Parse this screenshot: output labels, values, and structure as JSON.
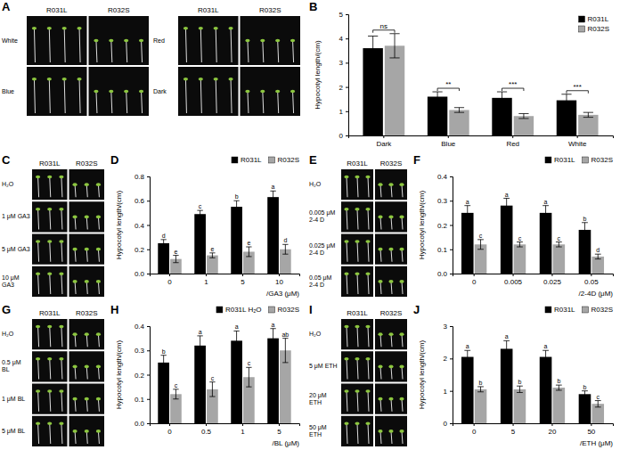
{
  "photo_panels": [
    {
      "panel_label": "A",
      "blocks": [
        {
          "columns": [
            "R031L",
            "R032S"
          ],
          "rows": [
            "White",
            "Blue"
          ]
        },
        {
          "columns": [
            "R031L",
            "R032S"
          ],
          "rows": [
            "Red",
            "Dark"
          ]
        }
      ]
    },
    {
      "panel_label": "C",
      "blocks": [
        {
          "columns": [
            "R031L",
            "R032S"
          ],
          "rows": [
            "H₂O",
            "1 μM GA3",
            "5 μM GA3",
            "10 μM GA3"
          ]
        }
      ]
    },
    {
      "panel_label": "E",
      "blocks": [
        {
          "columns": [
            "R031L",
            "R032S"
          ],
          "rows": [
            "H₂O",
            "0.005 μM 2-4 D",
            "0.025 μM 2-4 D",
            "0.05 μM 2-4 D"
          ]
        }
      ]
    },
    {
      "panel_label": "G",
      "blocks": [
        {
          "columns": [
            "R031L",
            "R032S"
          ],
          "rows": [
            "H₂O",
            "0.5 μM BL",
            "1 μM BL",
            "5 μM BL"
          ]
        }
      ]
    },
    {
      "panel_label": "I",
      "blocks": [
        {
          "columns": [
            "R031L",
            "R032S"
          ],
          "rows": [
            "H₂O",
            "5 μM ETH",
            "20 μM ETH",
            "50 μM ETH"
          ]
        }
      ]
    }
  ],
  "chart_data": [
    {
      "panel_label": "B",
      "type": "bar",
      "y_label": "Hypocotyl length/(cm)",
      "categories": [
        "Dark",
        "Blue",
        "Red",
        "White"
      ],
      "series": [
        {
          "name": "R031L",
          "color": "#000000",
          "values": [
            3.6,
            1.6,
            1.55,
            1.45
          ],
          "errors": [
            0.5,
            0.2,
            0.25,
            0.25
          ]
        },
        {
          "name": "R032S",
          "color": "#a6a6a6",
          "values": [
            3.7,
            1.05,
            0.8,
            0.85
          ],
          "errors": [
            0.5,
            0.1,
            0.1,
            0.1
          ]
        }
      ],
      "significance": [
        "ns",
        "**",
        "***",
        "***"
      ],
      "ylim": [
        0,
        5
      ],
      "yticks": [
        0,
        1,
        2,
        3,
        4,
        5
      ],
      "legend": "upper right"
    },
    {
      "panel_label": "D",
      "type": "bar",
      "y_label": "Hypocotyl length/(cm)",
      "x_label": "/GA3 (μM)",
      "categories": [
        "0",
        "1",
        "5",
        "10"
      ],
      "series": [
        {
          "name": "R031L",
          "color": "#000000",
          "values": [
            0.25,
            0.49,
            0.55,
            0.63
          ],
          "errors": [
            0.03,
            0.03,
            0.05,
            0.05
          ],
          "letters": [
            "d",
            "c",
            "b",
            "a"
          ]
        },
        {
          "name": "R032S",
          "color": "#a6a6a6",
          "values": [
            0.12,
            0.15,
            0.18,
            0.2
          ],
          "errors": [
            0.03,
            0.02,
            0.04,
            0.04
          ],
          "letters": [
            "e",
            "e",
            "e",
            "d"
          ]
        }
      ],
      "ylim": [
        0,
        0.8
      ],
      "yticks": [
        {
          "value": 0,
          "label": "0.0"
        },
        0.2,
        0.4,
        0.6,
        0.8
      ],
      "legend": "top"
    },
    {
      "panel_label": "F",
      "type": "bar",
      "y_label": "Hypocotyl length/(cm)",
      "x_label": "/2-4D (μM)",
      "categories": [
        "0",
        "0.005",
        "0.025",
        "0.05"
      ],
      "series": [
        {
          "name": "R031L",
          "color": "#000000",
          "values": [
            0.25,
            0.28,
            0.25,
            0.18
          ],
          "errors": [
            0.03,
            0.03,
            0.03,
            0.03
          ],
          "letters": [
            "a",
            "a",
            "a",
            "b"
          ]
        },
        {
          "name": "R032S",
          "color": "#a6a6a6",
          "values": [
            0.12,
            0.12,
            0.12,
            0.07
          ],
          "errors": [
            0.02,
            0.01,
            0.01,
            0.01
          ],
          "letters": [
            "c",
            "c",
            "c",
            "d"
          ]
        }
      ],
      "ylim": [
        0,
        0.4
      ],
      "yticks": [
        {
          "value": 0,
          "label": "0.0"
        },
        0.1,
        0.2,
        0.3,
        0.4
      ],
      "legend": "top"
    },
    {
      "panel_label": "H",
      "type": "bar",
      "y_label": "Hypocotyl length/(cm)",
      "x_label": "/BL (μM)",
      "categories": [
        "0",
        "0.5",
        "1",
        "5"
      ],
      "series": [
        {
          "name": "R031L H₂O",
          "color": "#000000",
          "values": [
            0.25,
            0.32,
            0.34,
            0.35
          ],
          "errors": [
            0.03,
            0.04,
            0.04,
            0.04
          ],
          "letters": [
            "b",
            "a",
            "a",
            "a"
          ]
        },
        {
          "name": "R032S",
          "color": "#a6a6a6",
          "values": [
            0.12,
            0.14,
            0.19,
            0.3
          ],
          "errors": [
            0.02,
            0.03,
            0.04,
            0.05
          ],
          "letters": [
            "c",
            "c",
            "c",
            "ab"
          ]
        }
      ],
      "ylim": [
        0,
        0.4
      ],
      "yticks": [
        {
          "value": 0,
          "label": "0.0"
        },
        0.1,
        0.2,
        0.3,
        0.4
      ],
      "legend": "top"
    },
    {
      "panel_label": "J",
      "type": "bar",
      "y_label": "Hypocotyl length/(cm)",
      "x_label": "/ETH (μM)",
      "categories": [
        "0",
        "5",
        "20",
        "50"
      ],
      "series": [
        {
          "name": "R031L",
          "color": "#000000",
          "values": [
            2.05,
            2.3,
            2.05,
            0.9
          ],
          "errors": [
            0.2,
            0.25,
            0.2,
            0.1
          ],
          "letters": [
            "a",
            "a",
            "a",
            "b"
          ]
        },
        {
          "name": "R032S",
          "color": "#a6a6a6",
          "values": [
            1.05,
            1.05,
            1.1,
            0.6
          ],
          "errors": [
            0.08,
            0.1,
            0.08,
            0.1
          ],
          "letters": [
            "b",
            "b",
            "b",
            "c"
          ]
        }
      ],
      "ylim": [
        0,
        3
      ],
      "yticks": [
        0,
        1,
        2,
        3
      ],
      "legend": "top"
    }
  ]
}
